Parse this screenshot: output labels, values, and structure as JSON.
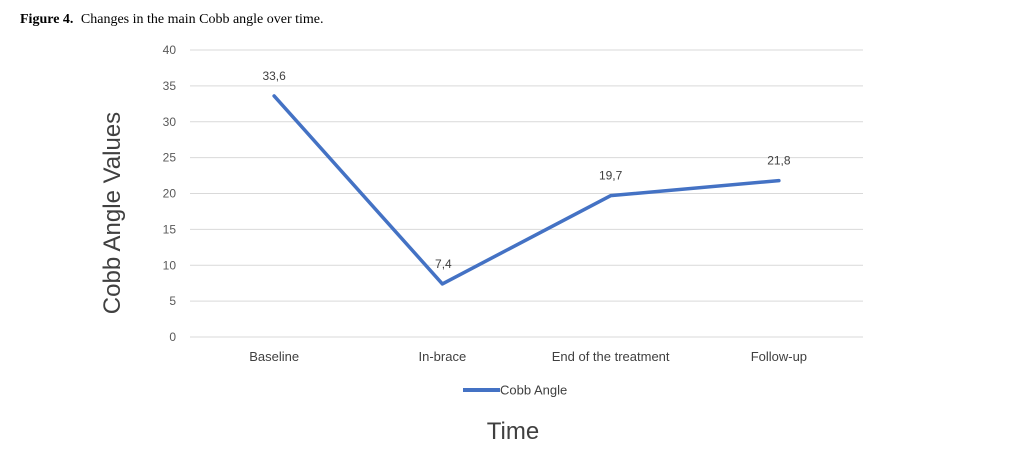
{
  "caption": {
    "label": "Figure 4.",
    "text": "Changes in the main Cobb angle over time."
  },
  "chart_data": {
    "type": "line",
    "categories": [
      "Baseline",
      "In-brace",
      "End of the treatment",
      "Follow-up"
    ],
    "series": [
      {
        "name": "Cobb Angle",
        "values": [
          33.6,
          7.4,
          19.7,
          21.8
        ],
        "data_labels": [
          "33,6",
          "7,4",
          "19,7",
          "21,8"
        ],
        "color": "#4472C4"
      }
    ],
    "xlabel": "Time",
    "ylabel": "Cobb Angle Values",
    "ylim": [
      0,
      40
    ],
    "yticks": [
      "0",
      "5",
      "10",
      "15",
      "20",
      "25",
      "30",
      "35",
      "40"
    ],
    "grid": true,
    "legend_position": "bottom"
  }
}
